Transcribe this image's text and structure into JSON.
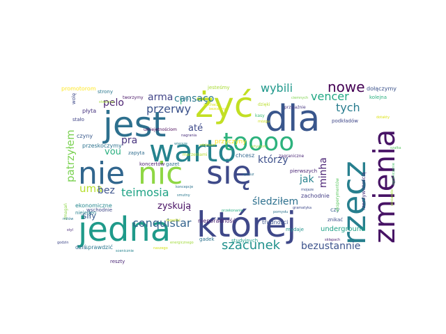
{
  "words": [
    {
      "text": "nie",
      "color": "#31668e"
    },
    {
      "text": "nic",
      "color": "#8fd744"
    },
    {
      "text": "się",
      "color": "#3e4a89"
    },
    {
      "text": "jest",
      "color": "#2d708e"
    },
    {
      "text": "żyć",
      "color": "#c2df23"
    },
    {
      "text": "dla",
      "color": "#39568c"
    },
    {
      "text": "warto",
      "color": "#25838e"
    },
    {
      "text": "toooo",
      "color": "#2db27d"
    },
    {
      "text": "jedna",
      "color": "#1f9a8a"
    },
    {
      "text": "której",
      "color": "#3f4889"
    },
    {
      "text": "zmienia",
      "color": "#471365"
    },
    {
      "text": "rzecz",
      "color": "#277f8e"
    },
    {
      "text": "nowe",
      "color": "#440154"
    },
    {
      "text": "wybili",
      "color": "#1f988b"
    },
    {
      "text": "vencer",
      "color": "#22a884"
    },
    {
      "text": "arma",
      "color": "#414487"
    },
    {
      "text": "cansaço",
      "color": "#2a788e"
    },
    {
      "text": "przerwy",
      "color": "#3b528b"
    },
    {
      "text": "i",
      "color": "#35b779"
    },
    {
      "text": "tych",
      "color": "#287c8e"
    },
    {
      "text": "pelo",
      "color": "#481f70"
    },
    {
      "text": "até",
      "color": "#3e4a89"
    },
    {
      "text": "pra",
      "color": "#46327e"
    },
    {
      "text": "vou",
      "color": "#29af7f"
    },
    {
      "text": "uma",
      "color": "#b5de2b"
    },
    {
      "text": "bez",
      "color": "#3b528b"
    },
    {
      "text": "teimosia",
      "color": "#20a386"
    },
    {
      "text": "którzy",
      "color": "#3c4f8a"
    },
    {
      "text": "patrzyłem",
      "color": "#7ad151"
    },
    {
      "text": "minha",
      "color": "#482173"
    },
    {
      "text": "jak",
      "color": "#26828e"
    },
    {
      "text": "śledziłem",
      "color": "#2d708e"
    },
    {
      "text": "conquistar",
      "color": "#33638d"
    },
    {
      "text": "zyskują",
      "color": "#471063"
    },
    {
      "text": "szacunek",
      "color": "#21918c"
    },
    {
      "text": "bezustannie",
      "color": "#3b528b"
    },
    {
      "text": "siły",
      "color": "#375a8c"
    },
    {
      "text": "przyczyny",
      "color": "#fde725"
    },
    {
      "text": "promotorom",
      "color": "#fde725"
    },
    {
      "text": "strony",
      "color": "#2a788e"
    },
    {
      "text": "jesteśmy",
      "color": "#a8db34"
    },
    {
      "text": "dołączymy",
      "color": "#3b528b"
    },
    {
      "text": "kolejna",
      "color": "#2ab07f"
    },
    {
      "text": "płyta",
      "color": "#46337f"
    },
    {
      "text": "stało",
      "color": "#414487"
    },
    {
      "text": "wolę",
      "color": "#3e4989"
    },
    {
      "text": "czyny",
      "color": "#38598c"
    },
    {
      "text": "przeskoczymy",
      "color": "#2c728e"
    },
    {
      "text": "zapyta",
      "color": "#2f6c8e"
    },
    {
      "text": "koncertów",
      "color": "#481a6c"
    },
    {
      "text": "gazet",
      "color": "#2e6e8e"
    },
    {
      "text": "chcesz",
      "color": "#31668e"
    },
    {
      "text": "niejeden",
      "color": "#27808e"
    },
    {
      "text": "ekonomiczne",
      "color": "#24878e"
    },
    {
      "text": "wschodnie",
      "color": "#3f4788"
    },
    {
      "text": "nieporadność",
      "color": "#481c6e"
    },
    {
      "text": "trudności",
      "color": "#3b528b"
    },
    {
      "text": "pierwszych",
      "color": "#482374"
    },
    {
      "text": "zachodnie",
      "color": "#433e85"
    },
    {
      "text": "mydaje",
      "color": "#20928c"
    },
    {
      "text": "znikać",
      "color": "#3d4e8a"
    },
    {
      "text": "czy",
      "color": "#365c8d"
    },
    {
      "text": "underground",
      "color": "#1fa187"
    },
    {
      "text": "studyjnych",
      "color": "#1e9c89"
    },
    {
      "text": "reszty",
      "color": "#482475"
    },
    {
      "text": "dziś",
      "color": "#31688e"
    },
    {
      "text": "sprawdzić",
      "color": "#2a768e"
    },
    {
      "text": "gadek",
      "color": "#2c728e"
    },
    {
      "text": "podkładów",
      "color": "#3f4788"
    },
    {
      "text": "kasy",
      "color": "#3dbc74"
    },
    {
      "text": "umiejętnościom",
      "color": "#440154"
    },
    {
      "text": "marzeniami",
      "color": "#b2dd2d"
    },
    {
      "text": "rzeczywistością",
      "color": "#46307e"
    },
    {
      "text": "eksperymentów",
      "color": "#5ec962"
    },
    {
      "text": "zmagań",
      "color": "#8bd646"
    },
    {
      "text": "mitów",
      "color": "#2b758e"
    },
    {
      "text": "styl",
      "color": "#482979"
    },
    {
      "text": "godzin",
      "color": "#3f4889"
    },
    {
      "text": "scenicznie",
      "color": "#26828e"
    },
    {
      "text": "dzięki",
      "color": "#b8de29"
    },
    {
      "text": "przyjaźnie",
      "color": "#463480"
    },
    {
      "text": "tworzymy",
      "color": "#471365"
    },
    {
      "text": "było",
      "color": "#2a788e"
    },
    {
      "text": "zagraniczne",
      "color": "#482576"
    },
    {
      "text": "mojaze",
      "color": "#3c508b"
    },
    {
      "text": "skłapach",
      "color": "#481f70"
    },
    {
      "text": "ciemnych",
      "color": "#7fd34e"
    },
    {
      "text": "artystom",
      "color": "#9bd93c"
    },
    {
      "text": "dotakty",
      "color": "#dde318"
    },
    {
      "text": "koncepcje",
      "color": "#2c728e"
    },
    {
      "text": "smutny",
      "color": "#2a788e"
    },
    {
      "text": "obsiandie",
      "color": "#a2da37"
    },
    {
      "text": "szałka",
      "color": "#5ec962"
    },
    {
      "text": "nagrania",
      "color": "#472d7b"
    },
    {
      "text": "ograniczenie",
      "color": "#4ac16d"
    },
    {
      "text": "słuchaczy",
      "color": "#d8e219"
    },
    {
      "text": "zagadać",
      "color": "#cae11f"
    },
    {
      "text": "przekonanie",
      "color": "#26ad81"
    },
    {
      "text": "energicznego",
      "color": "#a0da39"
    },
    {
      "text": "bezcenny",
      "color": "#e5e419"
    },
    {
      "text": "zdolności",
      "color": "#c0df25"
    },
    {
      "text": "naszego",
      "color": "#d5e21a"
    },
    {
      "text": "pomysłu",
      "color": "#2c728e"
    },
    {
      "text": "stwórcze",
      "color": "#a5db36"
    },
    {
      "text": "wiersze",
      "color": "#25848e"
    },
    {
      "text": "aplauz",
      "color": "#2d708e"
    },
    {
      "text": "gramatyka",
      "color": "#3e4989"
    },
    {
      "text": "mózgu",
      "color": "#d0e11c"
    }
  ]
}
